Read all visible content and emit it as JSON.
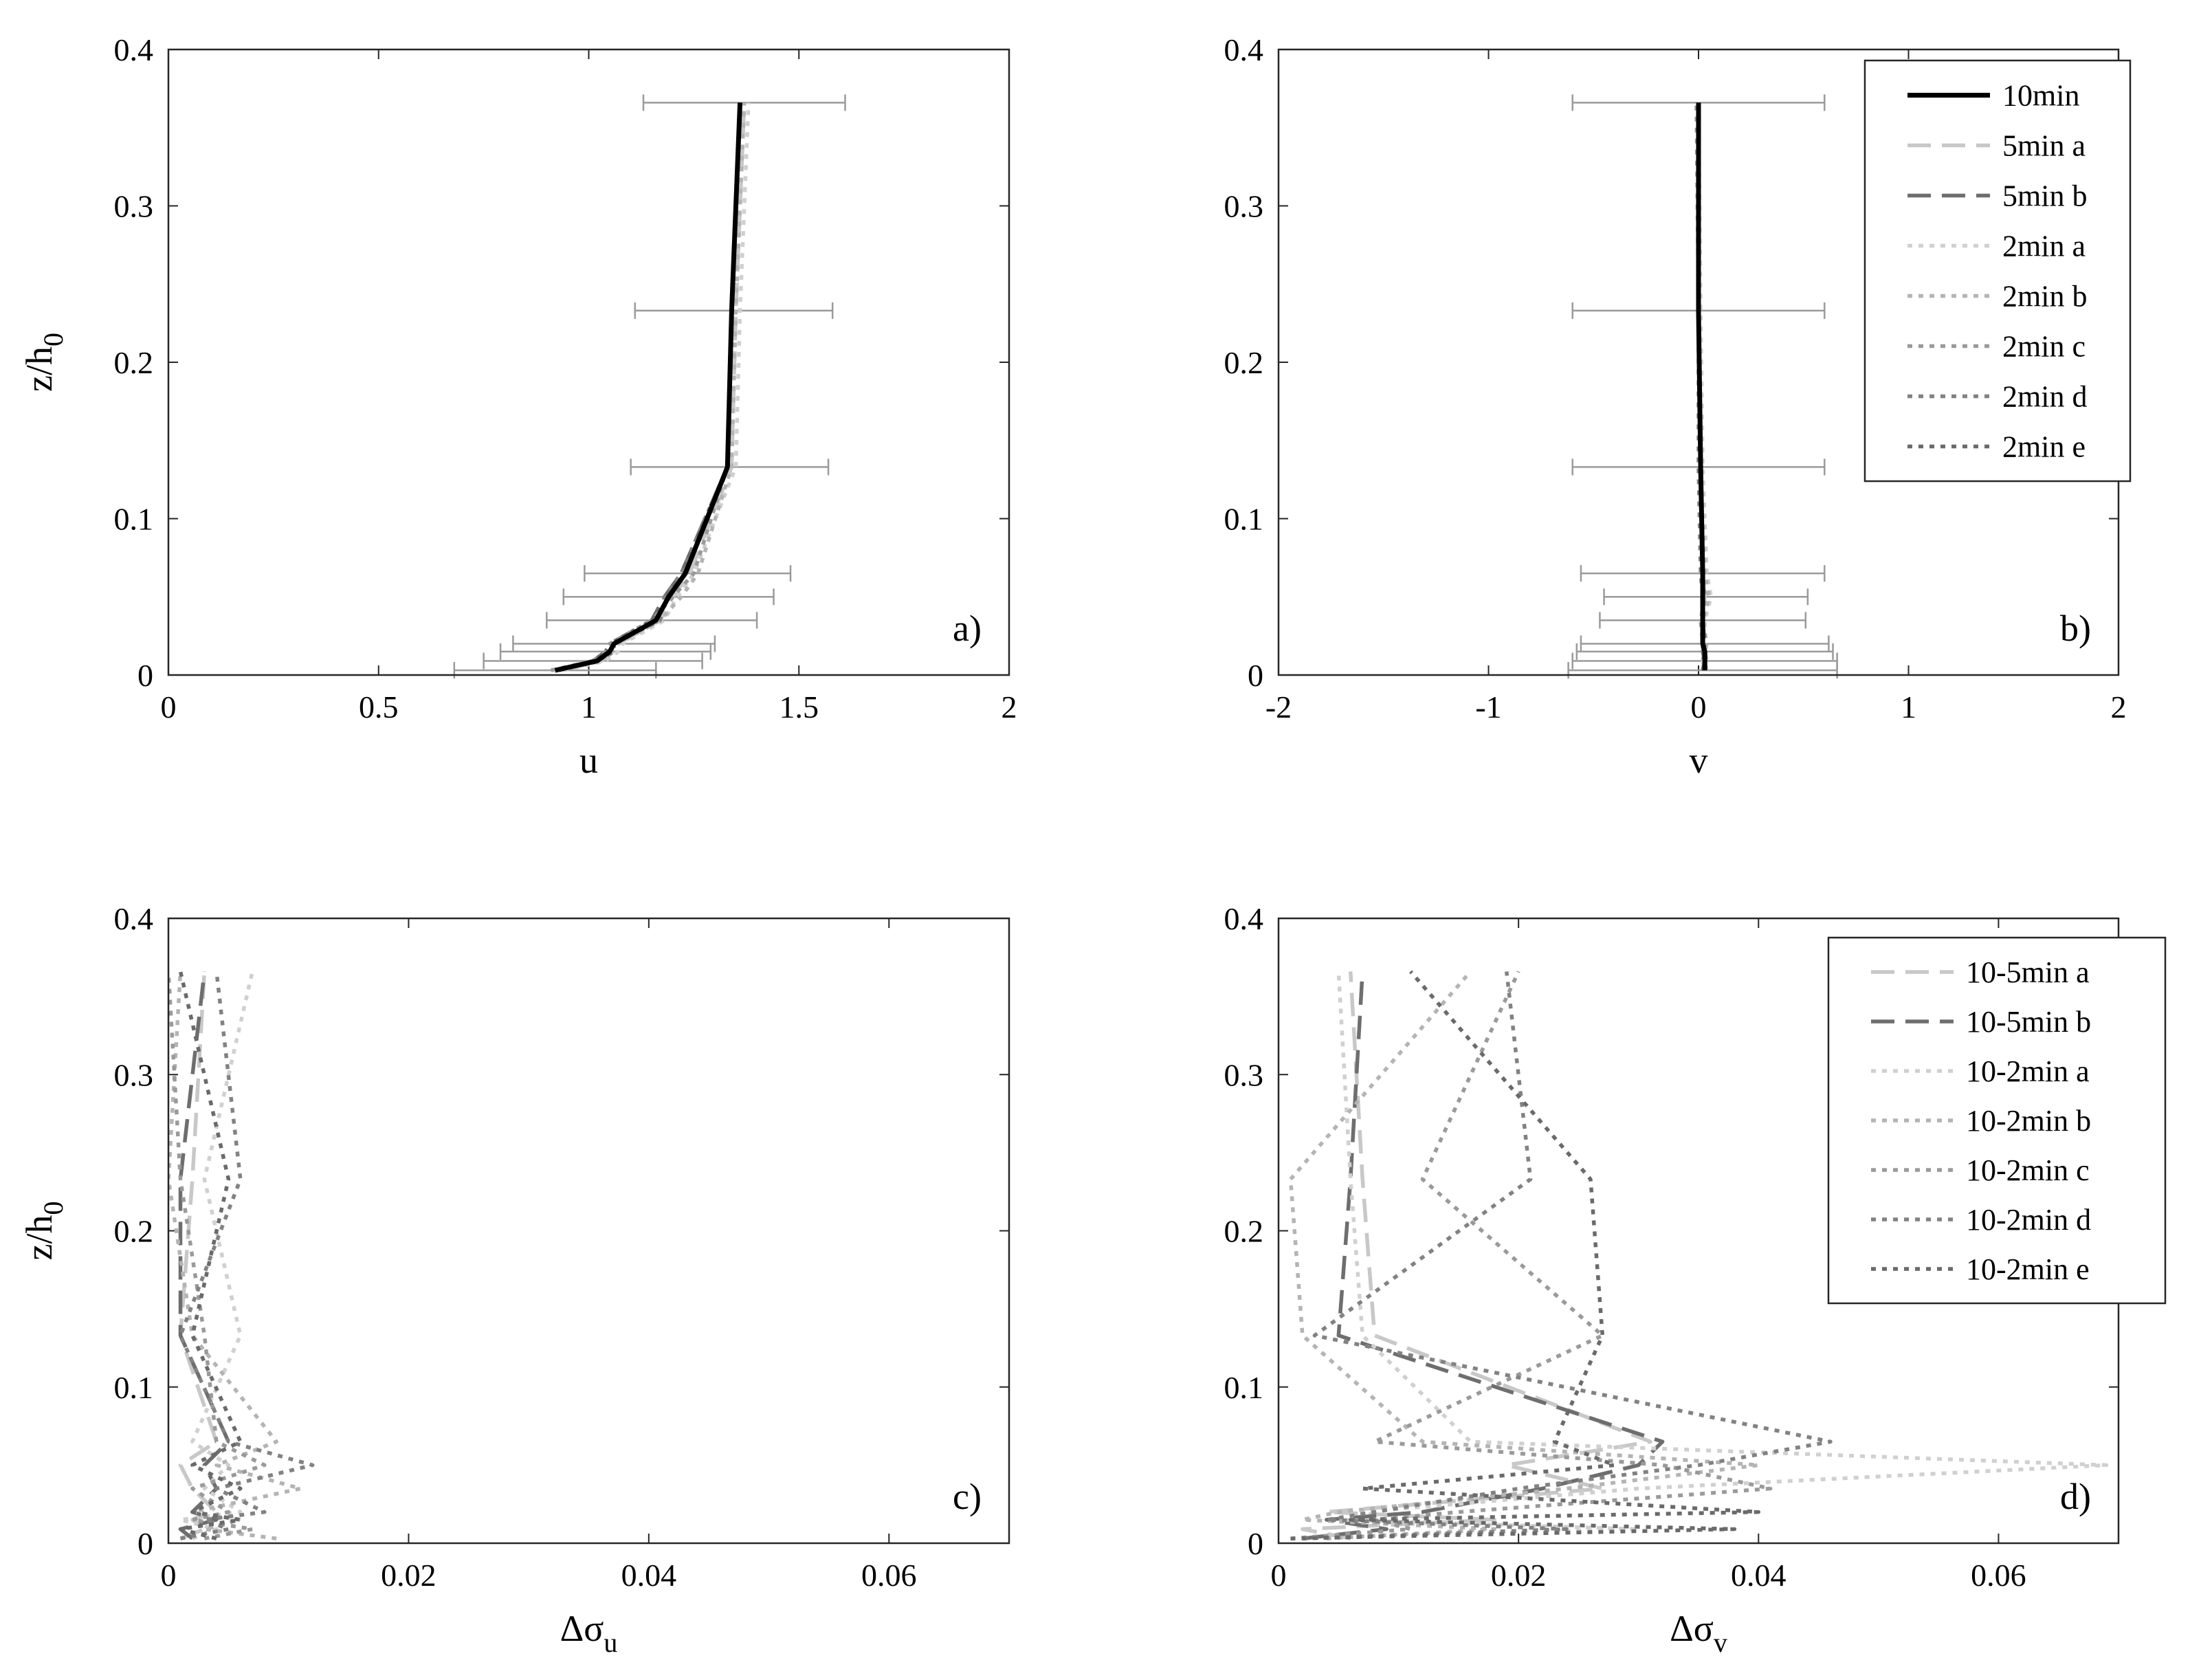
{
  "chart_data": [
    {
      "type": "line",
      "panel_label": "a)",
      "xlabel": "u",
      "ylabel": "z/h",
      "ylabel_sub": "0",
      "xlim": [
        0,
        2
      ],
      "ylim": [
        0,
        0.4
      ],
      "xticks": [
        0,
        0.5,
        1,
        1.5,
        2
      ],
      "xtick_labels": [
        "0",
        "0.5",
        "1",
        "1.5",
        "2"
      ],
      "yticks": [
        0,
        0.1,
        0.2,
        0.3,
        0.4
      ],
      "ytick_labels": [
        "0",
        "0.1",
        "0.2",
        "0.3",
        "0.4"
      ],
      "grid": false,
      "z": [
        0.003,
        0.009,
        0.015,
        0.02,
        0.035,
        0.05,
        0.065,
        0.133,
        0.233,
        0.366
      ],
      "error_bars": {
        "z": [
          0.003,
          0.009,
          0.015,
          0.02,
          0.035,
          0.05,
          0.065,
          0.133,
          0.233,
          0.366
        ],
        "center": [
          0.92,
          1.02,
          1.05,
          1.06,
          1.16,
          1.19,
          1.23,
          1.34,
          1.35,
          1.37
        ],
        "low": [
          0.68,
          0.75,
          0.79,
          0.82,
          0.9,
          0.94,
          0.99,
          1.1,
          1.11,
          1.13
        ],
        "high": [
          1.16,
          1.27,
          1.29,
          1.3,
          1.4,
          1.44,
          1.48,
          1.57,
          1.58,
          1.61
        ],
        "color": "#9a9a9a"
      },
      "series": [
        {
          "name": "10min",
          "style": "solid",
          "color": "#000000",
          "values": [
            0.92,
            1.02,
            1.05,
            1.06,
            1.16,
            1.19,
            1.23,
            1.33,
            1.34,
            1.36
          ]
        },
        {
          "name": "5min a",
          "style": "dashed",
          "color": "#c8c8c8",
          "values": [
            0.93,
            1.03,
            1.06,
            1.07,
            1.17,
            1.2,
            1.24,
            1.34,
            1.35,
            1.37
          ]
        },
        {
          "name": "5min b",
          "style": "dashed",
          "color": "#6e6e6e",
          "values": [
            0.92,
            1.01,
            1.04,
            1.05,
            1.15,
            1.18,
            1.22,
            1.33,
            1.34,
            1.36
          ]
        },
        {
          "name": "2min a",
          "style": "dotted",
          "color": "#d0d0d0",
          "values": [
            0.94,
            1.04,
            1.07,
            1.08,
            1.18,
            1.21,
            1.25,
            1.35,
            1.36,
            1.38
          ]
        },
        {
          "name": "2min b",
          "style": "dotted",
          "color": "#b4b4b4",
          "values": [
            0.93,
            1.03,
            1.05,
            1.07,
            1.17,
            1.22,
            1.26,
            1.34,
            1.35,
            1.37
          ]
        },
        {
          "name": "2min c",
          "style": "dotted",
          "color": "#9a9a9a",
          "values": [
            0.91,
            1.01,
            1.04,
            1.05,
            1.15,
            1.2,
            1.25,
            1.33,
            1.34,
            1.36
          ]
        },
        {
          "name": "2min d",
          "style": "dotted",
          "color": "#828282",
          "values": [
            0.92,
            1.02,
            1.06,
            1.06,
            1.17,
            1.18,
            1.22,
            1.33,
            1.34,
            1.36
          ]
        },
        {
          "name": "2min e",
          "style": "dotted",
          "color": "#6a6a6a",
          "values": [
            0.92,
            1.01,
            1.05,
            1.06,
            1.16,
            1.19,
            1.23,
            1.33,
            1.34,
            1.36
          ]
        }
      ]
    },
    {
      "type": "line",
      "panel_label": "b)",
      "xlabel": "v",
      "ylabel": "",
      "xlim": [
        -2,
        2
      ],
      "ylim": [
        0,
        0.4
      ],
      "xticks": [
        -2,
        -1,
        0,
        1,
        2
      ],
      "xtick_labels": [
        "-2",
        "-1",
        "0",
        "1",
        "2"
      ],
      "yticks": [
        0,
        0.1,
        0.2,
        0.3,
        0.4
      ],
      "ytick_labels": [
        "0",
        "0.1",
        "0.2",
        "0.3",
        "0.4"
      ],
      "grid": false,
      "legend_position": "top-right",
      "z": [
        0.003,
        0.009,
        0.015,
        0.02,
        0.035,
        0.05,
        0.065,
        0.133,
        0.233,
        0.366
      ],
      "error_bars": {
        "z": [
          0.003,
          0.009,
          0.015,
          0.02,
          0.035,
          0.05,
          0.065,
          0.133,
          0.233,
          0.366
        ],
        "center": [
          0.02,
          0.03,
          0.03,
          0.03,
          0.02,
          0.02,
          0.02,
          0.0,
          0.0,
          0.0
        ],
        "low": [
          -0.62,
          -0.6,
          -0.58,
          -0.56,
          -0.47,
          -0.45,
          -0.56,
          -0.6,
          -0.6,
          -0.6
        ],
        "high": [
          0.66,
          0.66,
          0.64,
          0.62,
          0.51,
          0.52,
          0.6,
          0.6,
          0.6,
          0.6
        ],
        "color": "#9a9a9a"
      },
      "series": [
        {
          "name": "10min",
          "style": "solid",
          "color": "#000000",
          "values": [
            0.03,
            0.03,
            0.03,
            0.02,
            0.02,
            0.02,
            0.02,
            0.01,
            0.0,
            0.0
          ]
        },
        {
          "name": "5min a",
          "style": "dashed",
          "color": "#c8c8c8",
          "values": [
            0.03,
            0.02,
            0.03,
            0.02,
            0.02,
            0.03,
            0.02,
            0.01,
            0.0,
            0.0
          ]
        },
        {
          "name": "5min b",
          "style": "dashed",
          "color": "#6e6e6e",
          "values": [
            0.02,
            0.03,
            0.02,
            0.03,
            0.02,
            0.02,
            0.02,
            0.01,
            0.0,
            0.0
          ]
        },
        {
          "name": "2min a",
          "style": "dotted",
          "color": "#d0d0d0",
          "values": [
            0.04,
            0.03,
            0.04,
            0.03,
            0.03,
            0.06,
            0.04,
            0.02,
            0.01,
            0.0
          ]
        },
        {
          "name": "2min b",
          "style": "dotted",
          "color": "#b4b4b4",
          "values": [
            0.03,
            0.04,
            0.03,
            0.04,
            0.02,
            0.05,
            0.03,
            0.01,
            0.0,
            0.0
          ]
        },
        {
          "name": "2min c",
          "style": "dotted",
          "color": "#9a9a9a",
          "values": [
            0.02,
            0.03,
            0.02,
            0.02,
            0.01,
            0.03,
            0.02,
            0.01,
            0.0,
            -0.01
          ]
        },
        {
          "name": "2min d",
          "style": "dotted",
          "color": "#828282",
          "values": [
            0.03,
            0.02,
            0.03,
            0.02,
            0.02,
            0.02,
            0.01,
            0.0,
            0.0,
            0.0
          ]
        },
        {
          "name": "2min e",
          "style": "dotted",
          "color": "#6a6a6a",
          "values": [
            0.02,
            0.03,
            0.02,
            0.03,
            0.02,
            0.02,
            0.02,
            0.01,
            0.0,
            0.0
          ]
        }
      ]
    },
    {
      "type": "line",
      "panel_label": "c)",
      "xlabel": "Δσ",
      "xlabel_sub": "u",
      "ylabel": "z/h",
      "ylabel_sub": "0",
      "xlim": [
        0,
        0.07
      ],
      "ylim": [
        0,
        0.4
      ],
      "xticks": [
        0,
        0.02,
        0.04,
        0.06
      ],
      "xtick_labels": [
        "0",
        "0.02",
        "0.04",
        "0.06"
      ],
      "yticks": [
        0,
        0.1,
        0.2,
        0.3,
        0.4
      ],
      "ytick_labels": [
        "0",
        "0.1",
        "0.2",
        "0.3",
        "0.4"
      ],
      "grid": false,
      "z": [
        0.003,
        0.009,
        0.015,
        0.02,
        0.035,
        0.05,
        0.065,
        0.133,
        0.233,
        0.366
      ],
      "series": [
        {
          "name": "10-5min a",
          "style": "dashed",
          "color": "#c8c8c8",
          "values": [
            0.001,
            0.003,
            0.002,
            0.004,
            0.002,
            0.001,
            0.004,
            0.001,
            0.002,
            0.003
          ]
        },
        {
          "name": "10-5min b",
          "style": "dashed",
          "color": "#6e6e6e",
          "values": [
            0.002,
            0.001,
            0.004,
            0.002,
            0.004,
            0.003,
            0.005,
            0.001,
            0.001,
            0.003
          ]
        },
        {
          "name": "10-2min a",
          "style": "dotted",
          "color": "#d0d0d0",
          "values": [
            0.002,
            0.004,
            0.001,
            0.006,
            0.003,
            0.005,
            0.002,
            0.006,
            0.003,
            0.007
          ]
        },
        {
          "name": "10-2min b",
          "style": "dotted",
          "color": "#b4b4b4",
          "values": [
            0.009,
            0.003,
            0.006,
            0.002,
            0.011,
            0.004,
            0.009,
            0.002,
            0.0,
            0.001
          ]
        },
        {
          "name": "10-2min c",
          "style": "dotted",
          "color": "#9a9a9a",
          "values": [
            0.003,
            0.007,
            0.002,
            0.005,
            0.002,
            0.008,
            0.004,
            0.003,
            0.001,
            0.0
          ]
        },
        {
          "name": "10-2min d",
          "style": "dotted",
          "color": "#828282",
          "values": [
            0.001,
            0.005,
            0.003,
            0.008,
            0.004,
            0.012,
            0.005,
            0.001,
            0.006,
            0.004
          ]
        },
        {
          "name": "10-2min e",
          "style": "dotted",
          "color": "#6a6a6a",
          "values": [
            0.004,
            0.001,
            0.006,
            0.002,
            0.006,
            0.002,
            0.006,
            0.002,
            0.005,
            0.001
          ]
        }
      ]
    },
    {
      "type": "line",
      "panel_label": "d)",
      "xlabel": "Δσ",
      "xlabel_sub": "v",
      "ylabel": "",
      "xlim": [
        0,
        0.07
      ],
      "ylim": [
        0,
        0.4
      ],
      "xticks": [
        0,
        0.02,
        0.04,
        0.06
      ],
      "xtick_labels": [
        "0",
        "0.02",
        "0.04",
        "0.06"
      ],
      "yticks": [
        0,
        0.1,
        0.2,
        0.3,
        0.4
      ],
      "ytick_labels": [
        "0",
        "0.1",
        "0.2",
        "0.3",
        "0.4"
      ],
      "grid": false,
      "legend_position": "top-right",
      "z": [
        0.003,
        0.009,
        0.015,
        0.02,
        0.035,
        0.05,
        0.065,
        0.133,
        0.233,
        0.366
      ],
      "series": [
        {
          "name": "10-5min a",
          "style": "dashed",
          "color": "#c8c8c8",
          "values": [
            0.006,
            0.002,
            0.018,
            0.004,
            0.027,
            0.019,
            0.031,
            0.008,
            0.007,
            0.006
          ]
        },
        {
          "name": "10-5min b",
          "style": "dashed",
          "color": "#6e6e6e",
          "values": [
            0.002,
            0.009,
            0.004,
            0.012,
            0.022,
            0.03,
            0.032,
            0.005,
            0.006,
            0.007
          ]
        },
        {
          "name": "10-2min a",
          "style": "dotted",
          "color": "#d0d0d0",
          "values": [
            0.001,
            0.03,
            0.005,
            0.007,
            0.03,
            0.069,
            0.016,
            0.007,
            0.006,
            0.005
          ]
        },
        {
          "name": "10-2min b",
          "style": "dotted",
          "color": "#b4b4b4",
          "values": [
            0.004,
            0.018,
            0.002,
            0.005,
            0.024,
            0.04,
            0.012,
            0.002,
            0.001,
            0.016
          ]
        },
        {
          "name": "10-2min c",
          "style": "dotted",
          "color": "#9a9a9a",
          "values": [
            0.001,
            0.011,
            0.008,
            0.015,
            0.041,
            0.032,
            0.008,
            0.027,
            0.012,
            0.02
          ]
        },
        {
          "name": "10-2min d",
          "style": "dotted",
          "color": "#828282",
          "values": [
            0.002,
            0.024,
            0.004,
            0.008,
            0.02,
            0.035,
            0.046,
            0.003,
            0.021,
            0.019
          ]
        },
        {
          "name": "10-2min e",
          "style": "dotted",
          "color": "#6a6a6a",
          "values": [
            0.001,
            0.038,
            0.006,
            0.04,
            0.007,
            0.028,
            0.023,
            0.027,
            0.026,
            0.011
          ]
        }
      ]
    }
  ]
}
